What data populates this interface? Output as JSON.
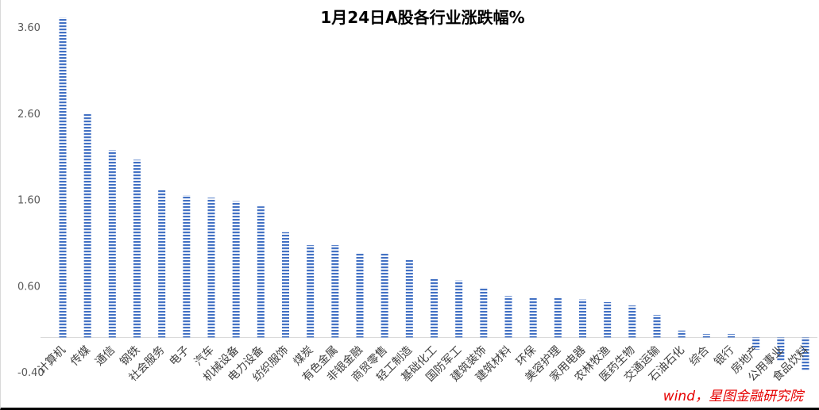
{
  "chart_data": {
    "type": "bar",
    "title": "1月24日A股各行业涨跌幅%",
    "xlabel": "",
    "ylabel": "",
    "ylim": [
      -0.4,
      3.6
    ],
    "yticks": [
      "-0.40",
      "0.60",
      "1.60",
      "2.60",
      "3.60"
    ],
    "grid": false,
    "legend": "none",
    "bar_color": "#4472c4",
    "categories": [
      "计算机",
      "传媒",
      "通信",
      "钢铁",
      "社会服务",
      "电子",
      "汽车",
      "机械设备",
      "电力设备",
      "纺织服饰",
      "煤炭",
      "有色金属",
      "非银金融",
      "商贸零售",
      "轻工制造",
      "基础化工",
      "国防军工",
      "建筑装饰",
      "建筑材料",
      "环保",
      "美容护理",
      "家用电器",
      "农林牧渔",
      "医药生物",
      "交通运输",
      "石油石化",
      "综合",
      "银行",
      "房地产",
      "公用事业",
      "食品饮料"
    ],
    "values": [
      3.71,
      2.6,
      2.17,
      2.06,
      1.72,
      1.65,
      1.62,
      1.58,
      1.52,
      1.22,
      1.07,
      1.07,
      0.97,
      0.97,
      0.9,
      0.69,
      0.66,
      0.58,
      0.48,
      0.47,
      0.47,
      0.44,
      0.41,
      0.37,
      0.26,
      0.08,
      0.04,
      0.04,
      -0.14,
      -0.28,
      -0.38
    ]
  },
  "source_note": "wind，星图金融研究院"
}
